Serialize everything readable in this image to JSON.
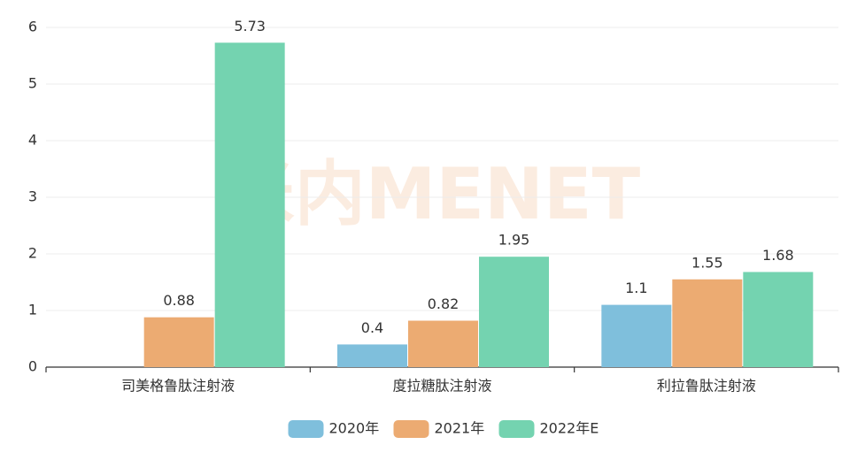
{
  "chart_data": {
    "type": "bar",
    "watermark": "米内MENET",
    "categories": [
      "司美格鲁肽注射液",
      "度拉糖肽注射液",
      "利拉鲁肽注射液"
    ],
    "series": [
      {
        "name": "2020年",
        "color": "#7fbfdc",
        "values": [
          null,
          0.4,
          1.1
        ]
      },
      {
        "name": "2021年",
        "color": "#ecab72",
        "values": [
          0.88,
          0.82,
          1.55
        ]
      },
      {
        "name": "2022年E",
        "color": "#74d3b0",
        "values": [
          5.73,
          1.95,
          1.68
        ]
      }
    ],
    "ylim": [
      0,
      6
    ],
    "yticks": [
      0,
      1,
      2,
      3,
      4,
      5,
      6
    ],
    "grid": true,
    "legend": "bottom"
  }
}
